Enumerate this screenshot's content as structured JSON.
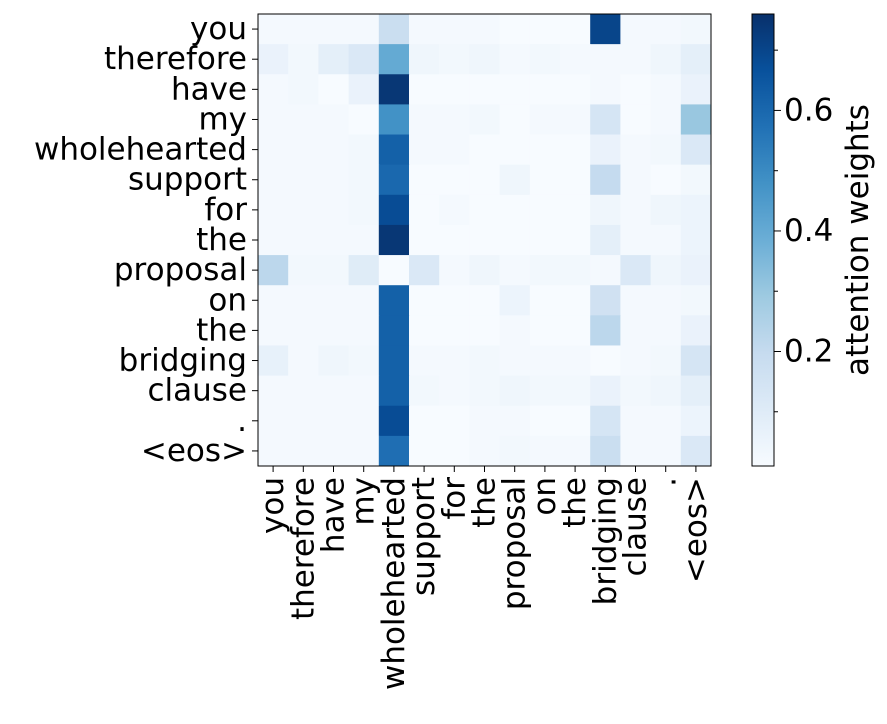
{
  "chart_data": {
    "type": "heatmap",
    "x_categories": [
      "you",
      "therefore",
      "have",
      "my",
      "wholehearted",
      "support",
      "for",
      "the",
      "proposal",
      "on",
      "the",
      "bridging",
      "clause",
      ".",
      "<eos>"
    ],
    "y_categories": [
      "you",
      "therefore",
      "have",
      "my",
      "wholehearted",
      "support",
      "for",
      "the",
      "proposal",
      "on",
      "the",
      "bridging",
      "clause",
      ".",
      "<eos>"
    ],
    "values": [
      [
        0.02,
        0.02,
        0.02,
        0.02,
        0.18,
        0.02,
        0.02,
        0.02,
        0.01,
        0.01,
        0.01,
        0.7,
        0.02,
        0.02,
        0.03
      ],
      [
        0.06,
        0.03,
        0.08,
        0.12,
        0.4,
        0.04,
        0.03,
        0.04,
        0.02,
        0.03,
        0.02,
        0.02,
        0.02,
        0.04,
        0.08
      ],
      [
        0.02,
        0.03,
        0.01,
        0.06,
        0.74,
        0.01,
        0.01,
        0.01,
        0.01,
        0.01,
        0.01,
        0.02,
        0.01,
        0.02,
        0.06
      ],
      [
        0.02,
        0.02,
        0.02,
        0.01,
        0.48,
        0.02,
        0.02,
        0.03,
        0.01,
        0.02,
        0.02,
        0.14,
        0.01,
        0.02,
        0.3
      ],
      [
        0.02,
        0.02,
        0.02,
        0.03,
        0.62,
        0.02,
        0.02,
        0.01,
        0.01,
        0.01,
        0.01,
        0.06,
        0.02,
        0.03,
        0.12
      ],
      [
        0.02,
        0.02,
        0.02,
        0.03,
        0.6,
        0.01,
        0.01,
        0.01,
        0.04,
        0.01,
        0.01,
        0.2,
        0.02,
        0.01,
        0.03
      ],
      [
        0.02,
        0.02,
        0.02,
        0.03,
        0.68,
        0.01,
        0.02,
        0.01,
        0.01,
        0.01,
        0.01,
        0.04,
        0.02,
        0.04,
        0.05
      ],
      [
        0.02,
        0.02,
        0.02,
        0.02,
        0.74,
        0.01,
        0.01,
        0.01,
        0.01,
        0.01,
        0.01,
        0.08,
        0.02,
        0.02,
        0.05
      ],
      [
        0.22,
        0.03,
        0.03,
        0.1,
        0.01,
        0.12,
        0.02,
        0.04,
        0.02,
        0.03,
        0.03,
        0.02,
        0.12,
        0.04,
        0.06
      ],
      [
        0.02,
        0.02,
        0.02,
        0.02,
        0.62,
        0.01,
        0.01,
        0.01,
        0.05,
        0.01,
        0.01,
        0.16,
        0.02,
        0.02,
        0.03
      ],
      [
        0.02,
        0.02,
        0.02,
        0.02,
        0.62,
        0.01,
        0.01,
        0.01,
        0.02,
        0.01,
        0.01,
        0.22,
        0.02,
        0.02,
        0.06
      ],
      [
        0.07,
        0.02,
        0.04,
        0.03,
        0.62,
        0.02,
        0.02,
        0.03,
        0.02,
        0.02,
        0.02,
        0.01,
        0.02,
        0.03,
        0.14
      ],
      [
        0.02,
        0.02,
        0.02,
        0.02,
        0.62,
        0.03,
        0.02,
        0.03,
        0.04,
        0.03,
        0.03,
        0.06,
        0.03,
        0.04,
        0.08
      ],
      [
        0.02,
        0.02,
        0.02,
        0.02,
        0.68,
        0.01,
        0.01,
        0.02,
        0.02,
        0.01,
        0.01,
        0.14,
        0.02,
        0.02,
        0.05
      ],
      [
        0.02,
        0.02,
        0.02,
        0.02,
        0.58,
        0.01,
        0.01,
        0.02,
        0.03,
        0.02,
        0.02,
        0.18,
        0.02,
        0.02,
        0.12
      ]
    ],
    "colormap": "Blues",
    "vmin": 0.01,
    "vmax": 0.76,
    "colorbar": {
      "label": "attention weights",
      "ticks": [
        0.2,
        0.4,
        0.6
      ],
      "tick_labels": [
        "0.2",
        "0.4",
        "0.6"
      ],
      "minor_ticks": [
        0.1,
        0.3,
        0.5,
        0.7
      ]
    },
    "title": "",
    "xlabel": "",
    "ylabel": "",
    "grid": false
  }
}
